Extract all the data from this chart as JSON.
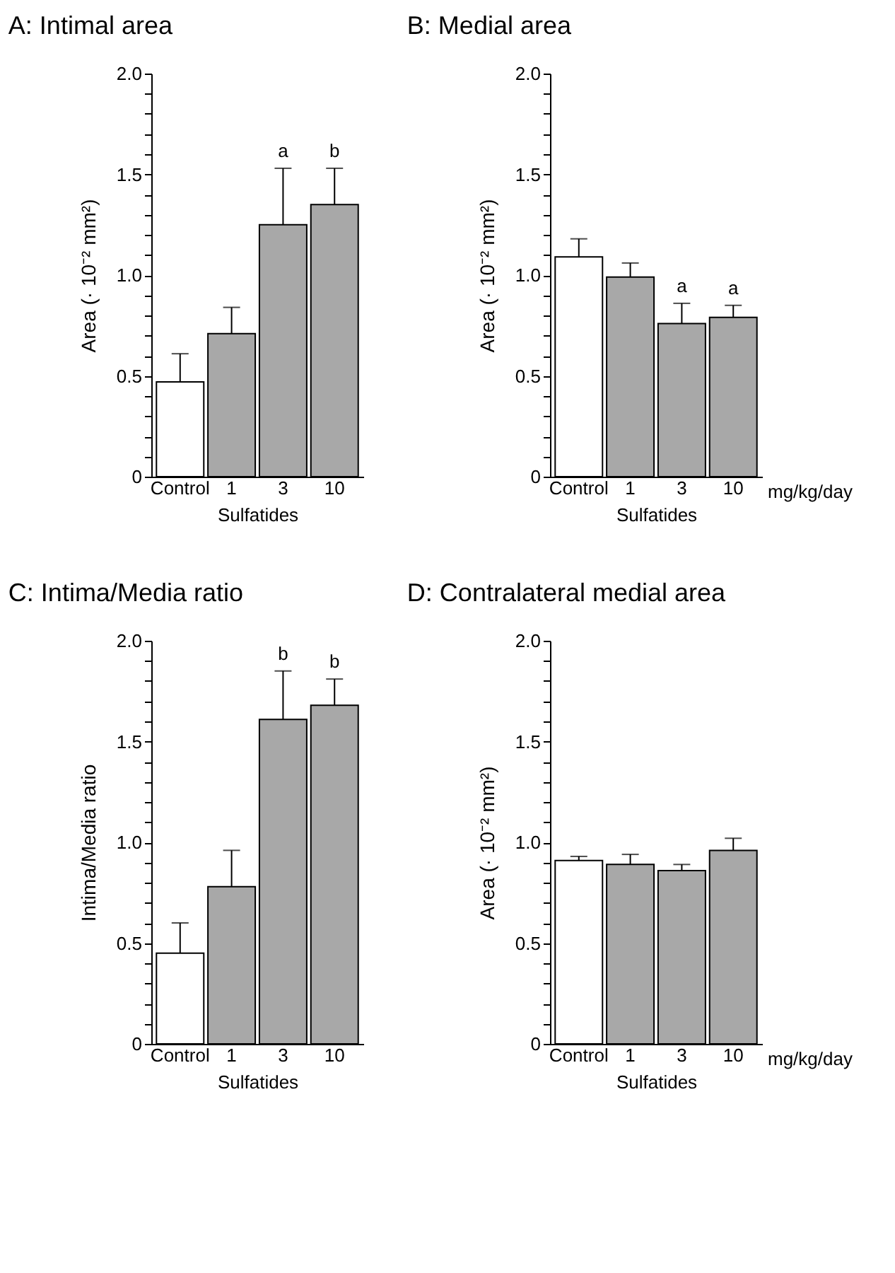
{
  "chart_data": [
    {
      "type": "bar",
      "title": "A: Intimal area",
      "xlabel": "Sulfatides",
      "ylabel": "Area (· 10⁻² mm²)",
      "categories": [
        "Control",
        "1",
        "3",
        "10"
      ],
      "values": [
        0.47,
        0.71,
        1.25,
        1.35
      ],
      "errors": [
        [
          0.47,
          0.61
        ],
        [
          0.71,
          0.84
        ],
        [
          1.25,
          1.53
        ],
        [
          1.35,
          1.53
        ]
      ],
      "colors": [
        "#ffffff",
        "#a8a8a8",
        "#a8a8a8",
        "#a8a8a8"
      ],
      "ylim": [
        0,
        2
      ],
      "yticks": [
        0,
        {
          "value": 0.1,
          "label": null
        },
        {
          "value": 0.2,
          "label": null
        },
        {
          "value": 0.3,
          "label": null
        },
        {
          "value": 0.4,
          "label": null
        },
        0.5,
        {
          "value": 0.6,
          "label": null
        },
        {
          "value": 0.7,
          "label": null
        },
        {
          "value": 0.8,
          "label": null
        },
        {
          "value": 0.9,
          "label": null
        },
        {
          "value": 1,
          "label": "1.0"
        },
        {
          "value": 1.1,
          "label": null
        },
        {
          "value": 1.2,
          "label": null
        },
        {
          "value": 1.3,
          "label": null
        },
        {
          "value": 1.4,
          "label": null
        },
        1.5,
        {
          "value": 1.6,
          "label": null
        },
        {
          "value": 1.7,
          "label": null
        },
        {
          "value": 1.8,
          "label": null
        },
        {
          "value": 1.9,
          "label": null
        },
        {
          "value": 2,
          "label": "2.0"
        }
      ],
      "annotations": [
        {
          "text": "a",
          "x": "3",
          "y": 1.53
        },
        {
          "text": "b",
          "x": "10",
          "y": 1.53
        }
      ]
    },
    {
      "type": "bar",
      "title": "B: Medial area",
      "xlabel": "Sulfatides",
      "ylabel": "Area (· 10⁻² mm²)",
      "categories": [
        "Control",
        "1",
        "3",
        "10"
      ],
      "values": [
        1.09,
        0.99,
        0.76,
        0.79
      ],
      "errors": [
        [
          1.09,
          1.18
        ],
        [
          0.99,
          1.06
        ],
        [
          0.76,
          0.86
        ],
        [
          0.79,
          0.85
        ]
      ],
      "colors": [
        "#ffffff",
        "#a8a8a8",
        "#a8a8a8",
        "#a8a8a8"
      ],
      "ylim": [
        0,
        2
      ],
      "yticks": [
        0,
        {
          "value": 0.1,
          "label": null
        },
        {
          "value": 0.2,
          "label": null
        },
        {
          "value": 0.3,
          "label": null
        },
        {
          "value": 0.4,
          "label": null
        },
        0.5,
        {
          "value": 0.6,
          "label": null
        },
        {
          "value": 0.7,
          "label": null
        },
        {
          "value": 0.8,
          "label": null
        },
        {
          "value": 0.9,
          "label": null
        },
        {
          "value": 1,
          "label": "1.0"
        },
        {
          "value": 1.1,
          "label": null
        },
        {
          "value": 1.2,
          "label": null
        },
        {
          "value": 1.3,
          "label": null
        },
        {
          "value": 1.4,
          "label": null
        },
        1.5,
        {
          "value": 1.6,
          "label": null
        },
        {
          "value": 1.7,
          "label": null
        },
        {
          "value": 1.8,
          "label": null
        },
        {
          "value": 1.9,
          "label": null
        },
        {
          "value": 2,
          "label": "2.0"
        }
      ],
      "annotations": [
        {
          "text": "a",
          "x": "3",
          "y": 0.86
        },
        {
          "text": "a",
          "x": "10",
          "y": 0.85
        },
        "mg/kg/day"
      ]
    },
    {
      "type": "bar",
      "title": "C: Intima/Media ratio",
      "xlabel": "Sulfatides",
      "ylabel": "Intima/Media ratio",
      "categories": [
        "Control",
        "1",
        "3",
        "10"
      ],
      "values": [
        0.45,
        0.78,
        1.61,
        1.68
      ],
      "errors": [
        [
          0.45,
          0.6
        ],
        [
          0.78,
          0.96
        ],
        [
          1.61,
          1.85
        ],
        [
          1.68,
          1.81
        ]
      ],
      "colors": [
        "#ffffff",
        "#a8a8a8",
        "#a8a8a8",
        "#a8a8a8"
      ],
      "ylim": [
        0,
        2
      ],
      "yticks": [
        0,
        {
          "value": 0.1,
          "label": null
        },
        {
          "value": 0.2,
          "label": null
        },
        {
          "value": 0.3,
          "label": null
        },
        {
          "value": 0.4,
          "label": null
        },
        0.5,
        {
          "value": 0.6,
          "label": null
        },
        {
          "value": 0.7,
          "label": null
        },
        {
          "value": 0.8,
          "label": null
        },
        {
          "value": 0.9,
          "label": null
        },
        {
          "value": 1,
          "label": "1.0"
        },
        {
          "value": 1.1,
          "label": null
        },
        {
          "value": 1.2,
          "label": null
        },
        {
          "value": 1.3,
          "label": null
        },
        {
          "value": 1.4,
          "label": null
        },
        1.5,
        {
          "value": 1.6,
          "label": null
        },
        {
          "value": 1.7,
          "label": null
        },
        {
          "value": 1.8,
          "label": null
        },
        {
          "value": 1.9,
          "label": null
        },
        {
          "value": 2,
          "label": "2.0"
        }
      ],
      "annotations": [
        {
          "text": "b",
          "x": "3",
          "y": 1.85
        },
        {
          "text": "b",
          "x": "10",
          "y": 1.81
        }
      ]
    },
    {
      "type": "bar",
      "title": "D: Contralateral medial area",
      "xlabel": "Sulfatides",
      "ylabel": "Area (· 10⁻² mm²)",
      "categories": [
        "Control",
        "1",
        "3",
        "10"
      ],
      "values": [
        0.91,
        0.89,
        0.86,
        0.96
      ],
      "errors": [
        [
          0.91,
          0.93
        ],
        [
          0.89,
          0.94
        ],
        [
          0.86,
          0.89
        ],
        [
          0.96,
          1.02
        ]
      ],
      "colors": [
        "#ffffff",
        "#a8a8a8",
        "#a8a8a8",
        "#a8a8a8"
      ],
      "ylim": [
        0,
        2
      ],
      "yticks": [
        0,
        {
          "value": 0.1,
          "label": null
        },
        {
          "value": 0.2,
          "label": null
        },
        {
          "value": 0.3,
          "label": null
        },
        {
          "value": 0.4,
          "label": null
        },
        0.5,
        {
          "value": 0.6,
          "label": null
        },
        {
          "value": 0.7,
          "label": null
        },
        {
          "value": 0.8,
          "label": null
        },
        {
          "value": 0.9,
          "label": null
        },
        {
          "value": 1,
          "label": "1.0"
        },
        {
          "value": 1.1,
          "label": null
        },
        {
          "value": 1.2,
          "label": null
        },
        {
          "value": 1.3,
          "label": null
        },
        {
          "value": 1.4,
          "label": null
        },
        1.5,
        {
          "value": 1.6,
          "label": null
        },
        {
          "value": 1.7,
          "label": null
        },
        {
          "value": 1.8,
          "label": null
        },
        {
          "value": 1.9,
          "label": null
        },
        {
          "value": 2,
          "label": "2.0"
        }
      ],
      "annotations": [
        "mg/kg/day"
      ]
    }
  ]
}
